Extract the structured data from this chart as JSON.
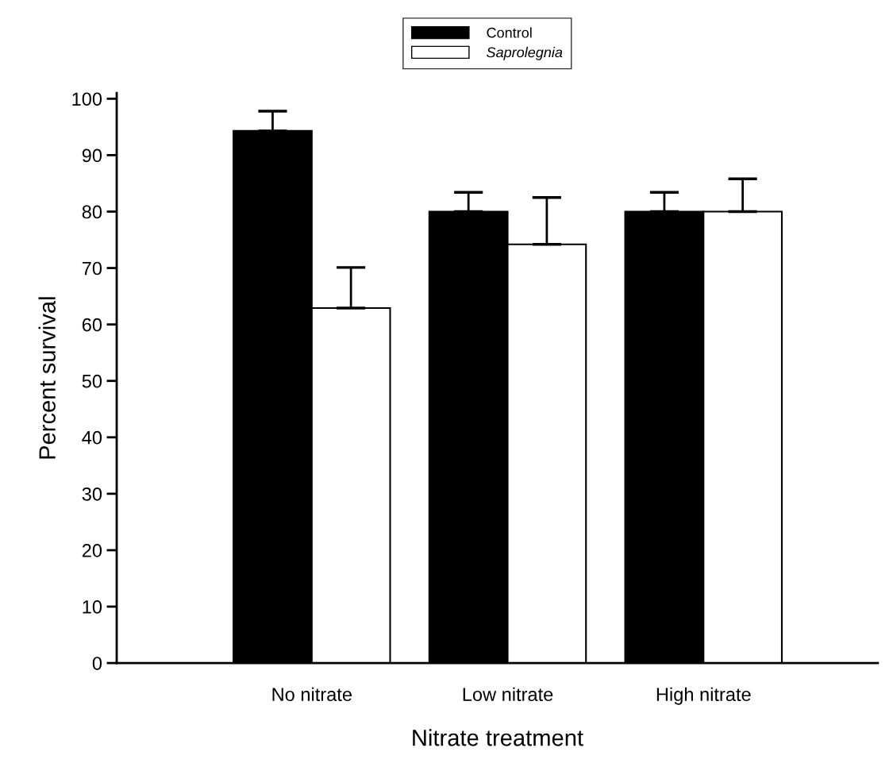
{
  "chart_data": {
    "type": "bar",
    "xlabel": "Nitrate treatment",
    "ylabel": "Percent survival",
    "categories": [
      "No nitrate",
      "Low nitrate",
      "High nitrate"
    ],
    "series": [
      {
        "name": "Control",
        "color": "#000000",
        "values": [
          94.3,
          80,
          80
        ],
        "errors": [
          [
            94.3,
            97.8
          ],
          [
            80,
            83.4
          ],
          [
            80,
            83.4
          ]
        ]
      },
      {
        "name": "Saprolegnia",
        "color": "#ffffff",
        "values": [
          62.9,
          74.2,
          80
        ],
        "errors": [
          [
            62.9,
            70.1
          ],
          [
            74.2,
            82.5
          ],
          [
            80,
            85.8
          ]
        ]
      }
    ],
    "ylim": [
      0,
      101
    ],
    "yticks": [
      0,
      10,
      20,
      30,
      40,
      50,
      60,
      70,
      80,
      90,
      100
    ],
    "grid": false,
    "legend": "top"
  }
}
